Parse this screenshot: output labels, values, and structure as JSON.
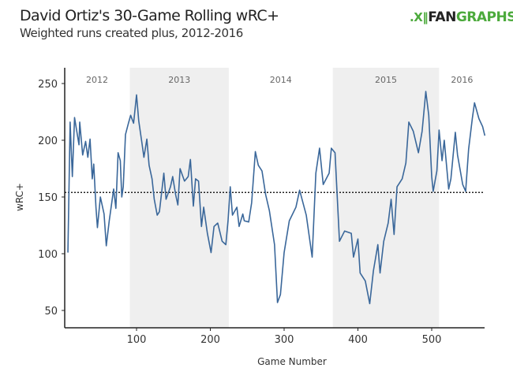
{
  "header": {
    "title": "David Ortiz's 30-Game Rolling wRC+",
    "subtitle": "Weighted runs created plus, 2012-2016",
    "logo_text": "FANGRAPHS",
    "logo_part1": "FAN",
    "logo_part2": "GRAPHS"
  },
  "colors": {
    "line": "#3a679a",
    "shade": "#efefef",
    "logo_green": "#4caa3c"
  },
  "chart_data": {
    "type": "line",
    "title": "David Ortiz's 30-Game Rolling wRC+",
    "subtitle": "Weighted runs created plus, 2012-2016",
    "xlabel": "Game Number",
    "ylabel": "wRC+",
    "xlim": [
      2,
      572
    ],
    "ylim": [
      35,
      262
    ],
    "xticks": [
      100,
      200,
      300,
      400,
      500
    ],
    "yticks": [
      50,
      100,
      150,
      200,
      250
    ],
    "reference_line": 154,
    "seasons": [
      {
        "label": "2012",
        "start": 2,
        "end": 91,
        "shaded": false
      },
      {
        "label": "2013",
        "start": 91,
        "end": 225,
        "shaded": true
      },
      {
        "label": "2014",
        "start": 225,
        "end": 366,
        "shaded": false
      },
      {
        "label": "2015",
        "start": 366,
        "end": 510,
        "shaded": true
      },
      {
        "label": "2016",
        "start": 510,
        "end": 572,
        "shaded": false
      }
    ],
    "series": [
      {
        "name": "wRC+",
        "x": [
          7,
          10,
          13,
          16,
          22,
          23,
          27,
          31,
          34,
          37,
          40,
          42,
          45,
          47,
          51,
          56,
          59,
          63,
          66,
          69,
          72,
          75,
          78,
          80,
          82,
          85,
          89,
          92,
          96,
          100,
          103,
          107,
          110,
          114,
          117,
          121,
          124,
          128,
          131,
          137,
          140,
          146,
          149,
          153,
          156,
          159,
          165,
          170,
          173,
          177,
          180,
          184,
          188,
          191,
          196,
          201,
          205,
          210,
          216,
          221,
          224,
          227,
          230,
          236,
          239,
          244,
          246,
          252,
          256,
          261,
          265,
          270,
          275,
          280,
          287,
          291,
          295,
          300,
          307,
          316,
          321,
          330,
          338,
          343,
          348,
          353,
          361,
          364,
          369,
          375,
          382,
          391,
          394,
          400,
          403,
          410,
          416,
          421,
          427,
          430,
          435,
          441,
          445,
          449,
          453,
          460,
          465,
          469,
          475,
          482,
          487,
          492,
          496,
          500,
          502,
          507,
          510,
          514,
          517,
          523,
          526,
          532,
          535,
          542,
          546,
          550,
          555,
          558,
          564,
          569,
          572
        ],
        "y": [
          101,
          216,
          168,
          220,
          196,
          216,
          187,
          199,
          185,
          201,
          166,
          179,
          141,
          123,
          150,
          135,
          107,
          129,
          143,
          157,
          140,
          189,
          182,
          150,
          159,
          205,
          215,
          222,
          215,
          240,
          217,
          199,
          185,
          201,
          178,
          166,
          148,
          134,
          137,
          171,
          148,
          159,
          168,
          152,
          143,
          175,
          164,
          168,
          183,
          142,
          166,
          164,
          124,
          141,
          118,
          101,
          124,
          127,
          111,
          108,
          129,
          159,
          134,
          141,
          124,
          135,
          129,
          128,
          145,
          190,
          178,
          173,
          152,
          138,
          108,
          57,
          64,
          101,
          129,
          141,
          156,
          134,
          97,
          171,
          193,
          161,
          171,
          193,
          189,
          111,
          120,
          118,
          97,
          113,
          83,
          76,
          56,
          85,
          108,
          83,
          111,
          127,
          148,
          117,
          159,
          166,
          180,
          216,
          208,
          189,
          208,
          243,
          222,
          168,
          155,
          173,
          209,
          182,
          200,
          157,
          166,
          207,
          187,
          161,
          155,
          192,
          219,
          233,
          219,
          212,
          204
        ]
      }
    ]
  }
}
